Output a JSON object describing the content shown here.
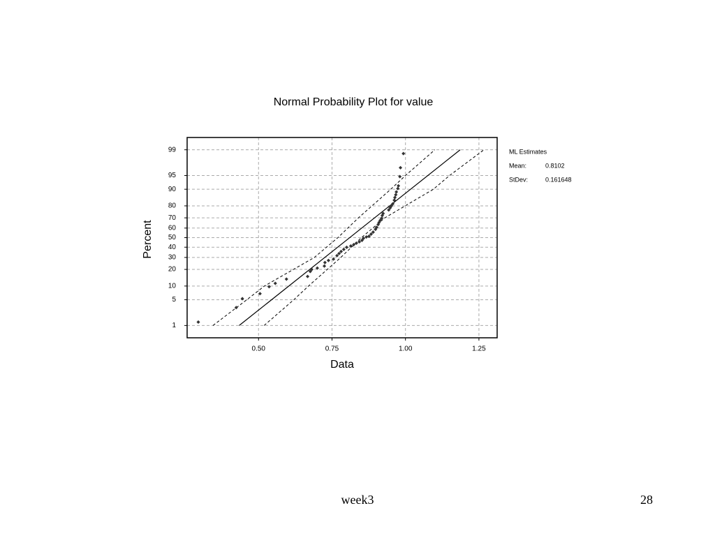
{
  "chart_data": {
    "type": "scatter",
    "title": "Normal Probability Plot for value",
    "x_label": "Data",
    "y_label": "Percent",
    "yscale": "probability",
    "grid": true,
    "xlim": [
      0.257,
      1.312
    ],
    "ylim": [
      0.4,
      99.6
    ],
    "xticks": [
      {
        "value": 0.5,
        "label": "0.50"
      },
      {
        "value": 0.75,
        "label": "0.75"
      },
      {
        "value": 1.0,
        "label": "1.00"
      },
      {
        "value": 1.25,
        "label": "1.25"
      }
    ],
    "yticks": [
      1,
      5,
      10,
      20,
      30,
      40,
      50,
      60,
      70,
      80,
      90,
      95,
      99
    ],
    "series": [
      {
        "color": "#333333",
        "x": [
          0.295,
          0.424,
          0.445,
          0.505,
          0.536,
          0.557,
          0.595,
          0.667,
          0.676,
          0.681,
          0.7,
          0.724,
          0.726,
          0.738,
          0.755,
          0.767,
          0.774,
          0.781,
          0.79,
          0.8,
          0.814,
          0.824,
          0.833,
          0.843,
          0.852,
          0.857,
          0.867,
          0.876,
          0.883,
          0.89,
          0.898,
          0.902,
          0.907,
          0.91,
          0.914,
          0.919,
          0.921,
          0.924,
          0.943,
          0.948,
          0.952,
          0.957,
          0.962,
          0.964,
          0.967,
          0.969,
          0.974,
          0.976,
          0.981,
          0.983,
          0.993
        ],
        "values": [
          1.27,
          3.2,
          5.3,
          6.9,
          9.7,
          11.3,
          13.6,
          15.2,
          18.5,
          20.0,
          21.0,
          22.6,
          25.5,
          27.3,
          28.5,
          31.7,
          33.7,
          35.7,
          37.8,
          39.9,
          41.3,
          42.7,
          44.2,
          45.6,
          47.1,
          49.3,
          50.7,
          51.5,
          53.7,
          55.8,
          58.7,
          60.8,
          63.6,
          65.6,
          67.6,
          69.6,
          72.1,
          73.9,
          76.8,
          78.5,
          80.0,
          81.5,
          83.9,
          85.6,
          87.2,
          88.7,
          90.3,
          91.5,
          94.7,
          96.8,
          98.7
        ]
      }
    ],
    "bands": [
      {
        "x": [
          0.345,
          0.46,
          0.52,
          0.69,
          0.77,
          0.84,
          0.95,
          1.0,
          1.1
        ],
        "values": [
          1,
          5,
          10,
          30,
          50,
          70,
          90,
          95,
          99
        ]
      },
      {
        "x": [
          0.519,
          0.62,
          0.67,
          0.78,
          0.85,
          0.93,
          1.095,
          1.15,
          1.267
        ],
        "values": [
          1,
          5,
          10,
          30,
          50,
          70,
          90,
          95,
          99
        ]
      }
    ],
    "estimates": {
      "title": "ML Estimates",
      "items": [
        {
          "label": "Mean:",
          "value": 0.8102
        },
        {
          "label": "StDev:",
          "value": 0.161648
        }
      ]
    }
  },
  "footer": {
    "text": "week3",
    "page": "28"
  }
}
